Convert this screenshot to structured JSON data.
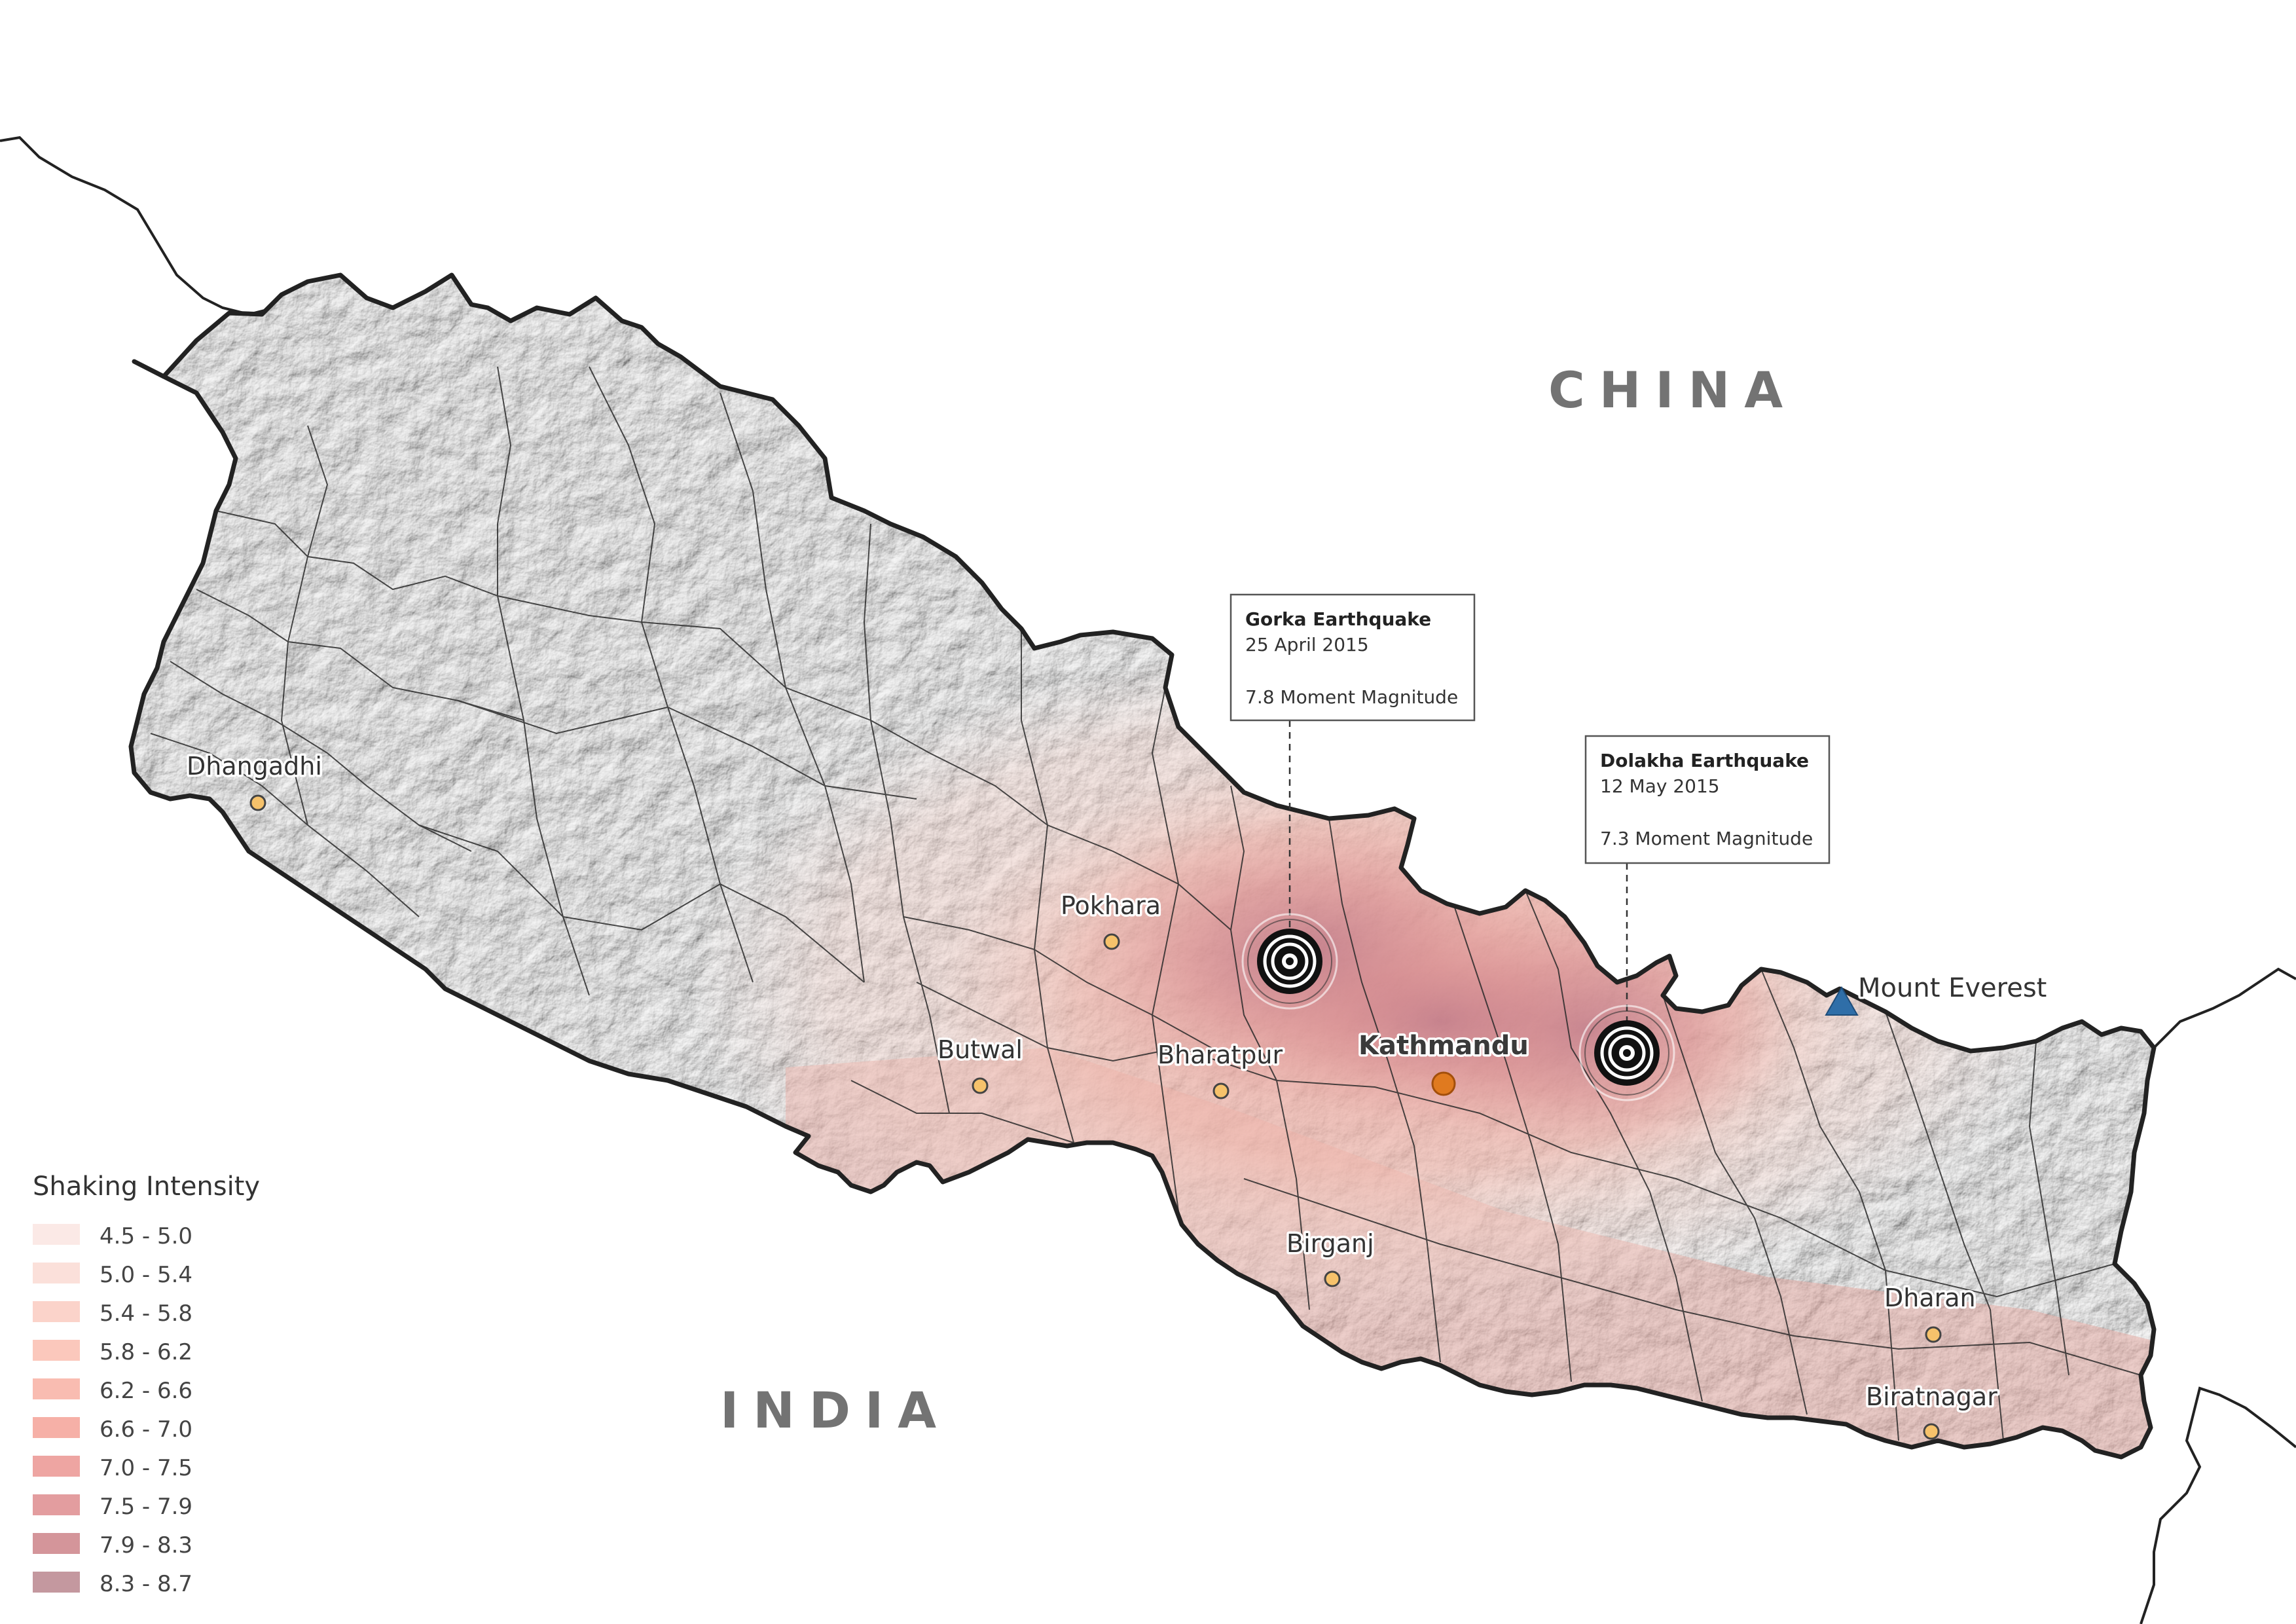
{
  "countries": {
    "china": "CHINA",
    "india": "INDIA"
  },
  "cities": [
    {
      "name": "Dhangadhi",
      "key": "dhangadhi"
    },
    {
      "name": "Pokhara",
      "key": "pokhara"
    },
    {
      "name": "Butwal",
      "key": "butwal"
    },
    {
      "name": "Bharatpur",
      "key": "bharatpur"
    },
    {
      "name": "Birganj",
      "key": "birganj"
    },
    {
      "name": "Dharan",
      "key": "dharan"
    },
    {
      "name": "Biratnagar",
      "key": "biratnagar"
    }
  ],
  "capital": {
    "name": "Kathmandu"
  },
  "peak": {
    "name": "Mount Everest"
  },
  "earthquakes": [
    {
      "title": "Gorka Earthquake",
      "date": "25 April 2015",
      "magnitude": "7.8 Moment Magnitude"
    },
    {
      "title": "Dolakha Earthquake",
      "date": "12 May 2015",
      "magnitude": "7.3 Moment Magnitude"
    }
  ],
  "legend": {
    "title": "Shaking Intensity",
    "items": [
      {
        "label": "4.5 - 5.0",
        "color": "#fbe9e6"
      },
      {
        "label": "5.0 - 5.4",
        "color": "#fbe0da"
      },
      {
        "label": "5.4 - 5.8",
        "color": "#fbd3ca"
      },
      {
        "label": "5.8 - 6.2",
        "color": "#fbc8bc"
      },
      {
        "label": "6.2 - 6.6",
        "color": "#f9bcb1"
      },
      {
        "label": "6.6 - 7.0",
        "color": "#f6b0a7"
      },
      {
        "label": "7.0 - 7.5",
        "color": "#eea5a2"
      },
      {
        "label": "7.5 - 7.9",
        "color": "#e39d9f"
      },
      {
        "label": "7.9 - 8.3",
        "color": "#d4959a"
      },
      {
        "label": "8.3 - 8.7",
        "color": "#c4989f"
      }
    ]
  },
  "colors": {
    "border": "#222222",
    "terrain": "#cfcfcf",
    "epicenter": "#111111",
    "capital_marker": "#e07a1f",
    "city_marker": "#f6c26b",
    "peak_marker": "#2f6ea8"
  }
}
